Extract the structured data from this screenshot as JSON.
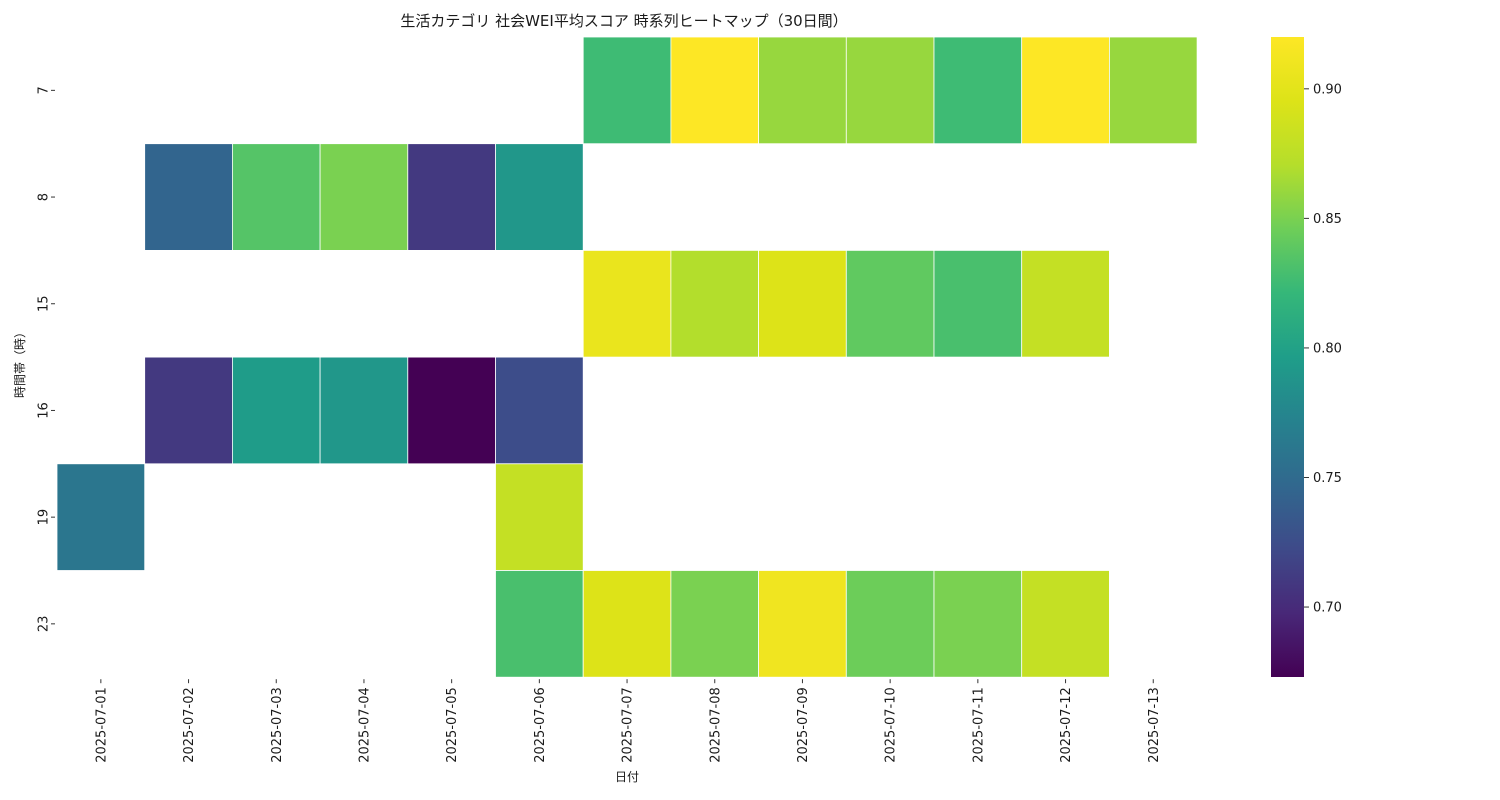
{
  "chart_data": {
    "type": "heatmap",
    "title": "生活カテゴリ 社会WEI平均スコア 時系列ヒートマップ（30日間）",
    "xlabel": "日付",
    "ylabel": "時間帯（時）",
    "x_categories": [
      "2025-07-01",
      "2025-07-02",
      "2025-07-03",
      "2025-07-04",
      "2025-07-05",
      "2025-07-06",
      "2025-07-07",
      "2025-07-08",
      "2025-07-09",
      "2025-07-10",
      "2025-07-11",
      "2025-07-12",
      "2025-07-13"
    ],
    "y_categories": [
      "7",
      "8",
      "15",
      "16",
      "19",
      "23"
    ],
    "values": [
      [
        null,
        null,
        null,
        null,
        null,
        null,
        0.825,
        0.92,
        0.86,
        0.86,
        0.825,
        0.92,
        0.86
      ],
      [
        null,
        0.745,
        0.835,
        0.85,
        0.71,
        0.79,
        null,
        null,
        null,
        null,
        null,
        null,
        null
      ],
      [
        null,
        null,
        null,
        null,
        null,
        null,
        0.905,
        0.87,
        0.895,
        0.84,
        0.83,
        0.88,
        null
      ],
      [
        null,
        0.71,
        0.795,
        0.79,
        0.673,
        0.725,
        null,
        null,
        null,
        null,
        null,
        null,
        null
      ],
      [
        0.76,
        null,
        null,
        null,
        null,
        0.88,
        null,
        null,
        null,
        null,
        null,
        null,
        null
      ],
      [
        null,
        null,
        null,
        null,
        null,
        0.83,
        0.895,
        0.85,
        0.91,
        0.845,
        0.85,
        0.88,
        null
      ]
    ],
    "colormap": "viridis",
    "color_range": [
      0.673,
      0.92
    ],
    "colorbar_ticks": [
      "0.70",
      "0.75",
      "0.80",
      "0.85",
      "0.90"
    ],
    "colorbar_tick_values": [
      0.7,
      0.75,
      0.8,
      0.85,
      0.9
    ],
    "grid": false,
    "legend": "colorbar-right"
  }
}
